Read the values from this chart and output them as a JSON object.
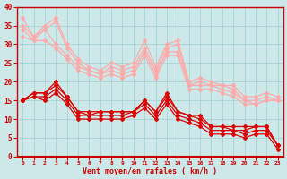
{
  "xlabel": "Vent moyen/en rafales ( km/h )",
  "xlim": [
    -0.5,
    23.5
  ],
  "ylim": [
    0,
    40
  ],
  "yticks": [
    0,
    5,
    10,
    15,
    20,
    25,
    30,
    35,
    40
  ],
  "xticks": [
    0,
    1,
    2,
    3,
    4,
    5,
    6,
    7,
    8,
    9,
    10,
    11,
    12,
    13,
    14,
    15,
    16,
    17,
    18,
    19,
    20,
    21,
    22,
    23
  ],
  "bg_color": "#cce8e8",
  "grid_color": "#aad4d4",
  "light_pink": "#ffaaaa",
  "dark_red": "#dd0000",
  "lines_light": [
    [
      37,
      32,
      35,
      37,
      30,
      26,
      24,
      23,
      25,
      24,
      25,
      31,
      24,
      30,
      31,
      20,
      21,
      20,
      19,
      19,
      16,
      16,
      17,
      16
    ],
    [
      35,
      32,
      34,
      36,
      29,
      25,
      23,
      22,
      24,
      23,
      24,
      29,
      23,
      29,
      30,
      19,
      20,
      19,
      19,
      18,
      15,
      15,
      16,
      15
    ],
    [
      34,
      31,
      34,
      30,
      27,
      24,
      23,
      22,
      23,
      22,
      23,
      28,
      22,
      28,
      28,
      19,
      19,
      19,
      18,
      17,
      15,
      14,
      15,
      15
    ],
    [
      32,
      31,
      31,
      29,
      26,
      23,
      22,
      21,
      22,
      21,
      22,
      27,
      21,
      27,
      27,
      18,
      18,
      18,
      17,
      16,
      14,
      14,
      15,
      15
    ]
  ],
  "lines_dark": [
    [
      15,
      17,
      17,
      20,
      16,
      12,
      12,
      12,
      12,
      12,
      12,
      15,
      12,
      17,
      12,
      11,
      11,
      8,
      8,
      8,
      8,
      8,
      8,
      3
    ],
    [
      15,
      17,
      17,
      19,
      16,
      12,
      11,
      12,
      12,
      12,
      12,
      15,
      12,
      16,
      12,
      11,
      10,
      8,
      8,
      7,
      7,
      8,
      8,
      3
    ],
    [
      15,
      16,
      16,
      18,
      15,
      11,
      11,
      11,
      11,
      11,
      12,
      14,
      11,
      15,
      11,
      10,
      9,
      7,
      7,
      7,
      6,
      7,
      7,
      3
    ],
    [
      15,
      16,
      15,
      17,
      14,
      10,
      10,
      10,
      10,
      10,
      11,
      13,
      10,
      14,
      10,
      9,
      8,
      6,
      6,
      6,
      5,
      6,
      6,
      2
    ]
  ]
}
